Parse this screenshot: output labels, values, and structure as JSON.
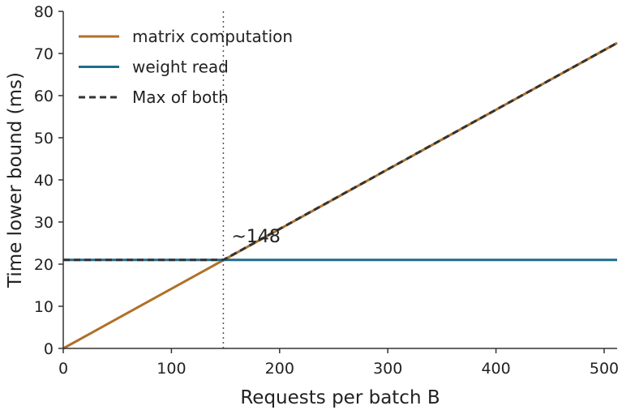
{
  "chart_data": {
    "type": "line",
    "title": "",
    "xlabel": "Requests per batch B",
    "ylabel": "Time lower bound (ms)",
    "xlim": [
      0,
      512
    ],
    "ylim": [
      0,
      80
    ],
    "xticks": [
      0,
      100,
      200,
      300,
      400,
      500
    ],
    "yticks": [
      0,
      10,
      20,
      30,
      40,
      50,
      60,
      70,
      80
    ],
    "grid": false,
    "legend_position": "top-left",
    "series": [
      {
        "name": "matrix computation",
        "color": "#b07028",
        "style": "solid",
        "x": [
          0,
          512
        ],
        "y": [
          0,
          72.5
        ]
      },
      {
        "name": "weight read",
        "color": "#206c8c",
        "style": "solid",
        "x": [
          0,
          512
        ],
        "y": [
          21,
          21
        ]
      },
      {
        "name": "Max of both",
        "color": "#333333",
        "style": "dashed",
        "x": [
          0,
          148,
          512
        ],
        "y": [
          21,
          21,
          72.5
        ]
      }
    ],
    "vline": {
      "x": 148,
      "style": "dotted",
      "color": "#555555"
    },
    "annotations": [
      {
        "text": "~148",
        "x": 148,
        "y": 21
      }
    ]
  }
}
